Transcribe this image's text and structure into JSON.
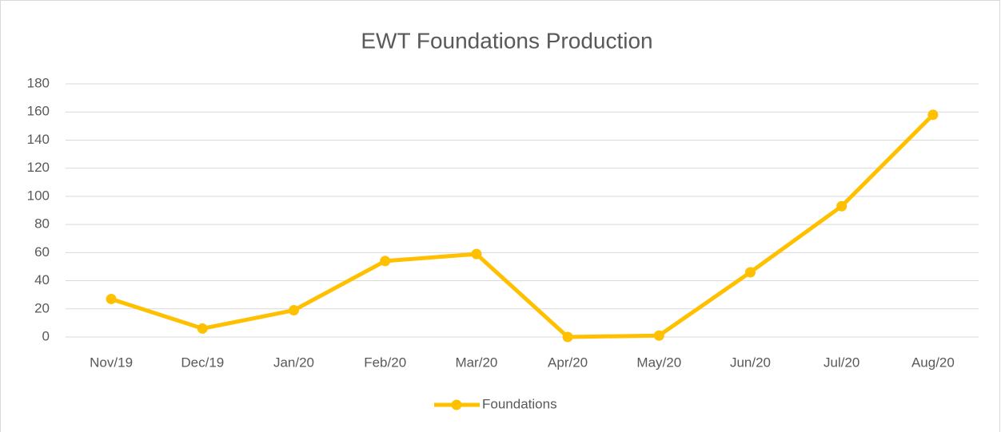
{
  "chart_data": {
    "type": "line",
    "title": "EWT Foundations Production",
    "categories": [
      "Nov/19",
      "Dec/19",
      "Jan/20",
      "Feb/20",
      "Mar/20",
      "Apr/20",
      "May/20",
      "Jun/20",
      "Jul/20",
      "Aug/20"
    ],
    "series": [
      {
        "name": "Foundations",
        "color": "#ffc000",
        "values": [
          27,
          6,
          19,
          54,
          59,
          0,
          1,
          46,
          93,
          158
        ]
      }
    ],
    "ylim": [
      0,
      180
    ],
    "yticks": [
      0,
      20,
      40,
      60,
      80,
      100,
      120,
      140,
      160,
      180
    ],
    "grid": true,
    "legend": "bottom"
  }
}
